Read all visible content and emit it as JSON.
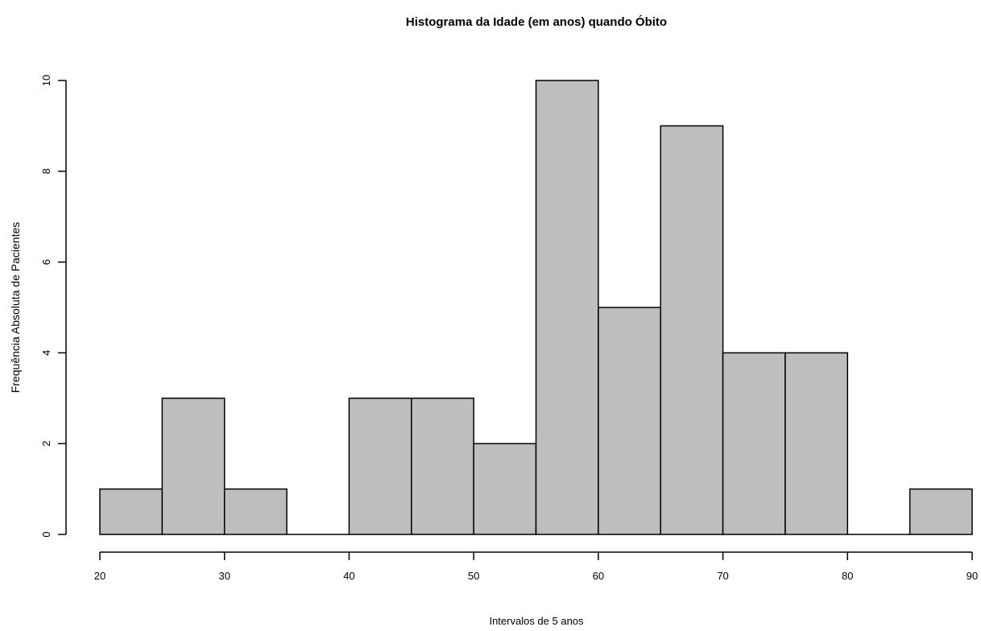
{
  "chart_data": {
    "type": "bar",
    "subtype": "histogram",
    "title": "Histograma da Idade (em anos) quando Óbito",
    "xlabel": "Intervalos de 5 anos",
    "ylabel": "Frequência Absoluta de Pacientes",
    "bins": [
      {
        "from": 20,
        "to": 25,
        "count": 1
      },
      {
        "from": 25,
        "to": 30,
        "count": 3
      },
      {
        "from": 30,
        "to": 35,
        "count": 1
      },
      {
        "from": 35,
        "to": 40,
        "count": 0
      },
      {
        "from": 40,
        "to": 45,
        "count": 3
      },
      {
        "from": 45,
        "to": 50,
        "count": 3
      },
      {
        "from": 50,
        "to": 55,
        "count": 2
      },
      {
        "from": 55,
        "to": 60,
        "count": 10
      },
      {
        "from": 60,
        "to": 65,
        "count": 5
      },
      {
        "from": 65,
        "to": 70,
        "count": 9
      },
      {
        "from": 70,
        "to": 75,
        "count": 4
      },
      {
        "from": 75,
        "to": 80,
        "count": 4
      },
      {
        "from": 80,
        "to": 85,
        "count": 0
      },
      {
        "from": 85,
        "to": 90,
        "count": 1
      }
    ],
    "xlim": [
      20,
      90
    ],
    "ylim": [
      0,
      10
    ],
    "xticks": [
      20,
      30,
      40,
      50,
      60,
      70,
      80,
      90
    ],
    "yticks": [
      0,
      2,
      4,
      6,
      8,
      10
    ],
    "bar_color": "#bebebe",
    "edge_color": "#000000",
    "grid": false,
    "legend": "none"
  }
}
